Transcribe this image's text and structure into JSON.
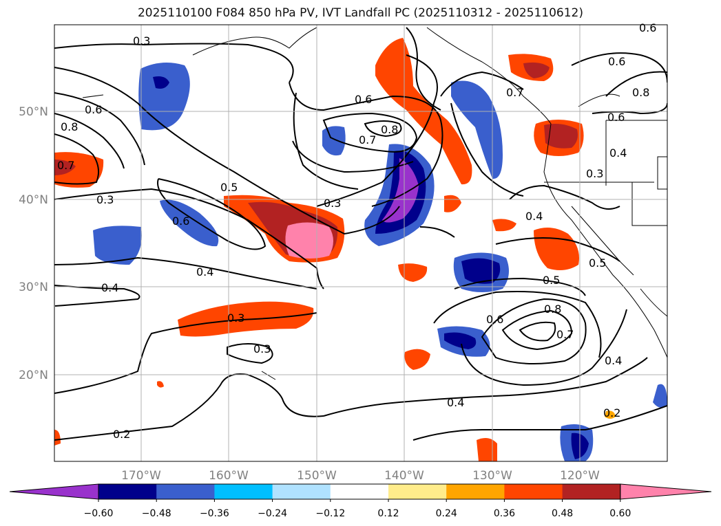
{
  "title": "2025110100 F084 850 hPa PV, IVT Landfall PC (2025110312 - 2025110612)",
  "map": {
    "lon_ticks": [
      "170°W",
      "160°W",
      "150°W",
      "140°W",
      "130°W",
      "120°W"
    ],
    "lat_ticks": [
      "50°N",
      "40°N",
      "30°N",
      "20°N"
    ],
    "axis_label_color": "#808080",
    "grid_color": "#b0b0b0"
  },
  "contour_labels": [
    "0.3",
    "0.6",
    "0.8",
    "0.7",
    "0.3",
    "0.5",
    "0.6",
    "0.4",
    "0.4",
    "0.3",
    "0.3",
    "0.6",
    "0.8",
    "0.7",
    "0.3",
    "0.6",
    "0.7",
    "0.8",
    "0.6",
    "0.6",
    "0.4",
    "0.3",
    "0.4",
    "0.5",
    "0.5",
    "0.6",
    "0.8",
    "0.7",
    "0.4",
    "0.4",
    "0.2",
    "0.2"
  ],
  "colorbar": {
    "ticks": [
      "−0.60",
      "−0.48",
      "−0.36",
      "−0.24",
      "−0.12",
      "0.12",
      "0.24",
      "0.36",
      "0.48",
      "0.60"
    ],
    "colors": [
      "#9932cc",
      "#00008b",
      "#3a5fcd",
      "#00bfff",
      "#b0e2ff",
      "#ffffff",
      "#ffec8b",
      "#ffa500",
      "#ff4500",
      "#b22222",
      "#ff82ab"
    ],
    "under_color": "#9932cc",
    "over_color": "#ff82ab"
  }
}
